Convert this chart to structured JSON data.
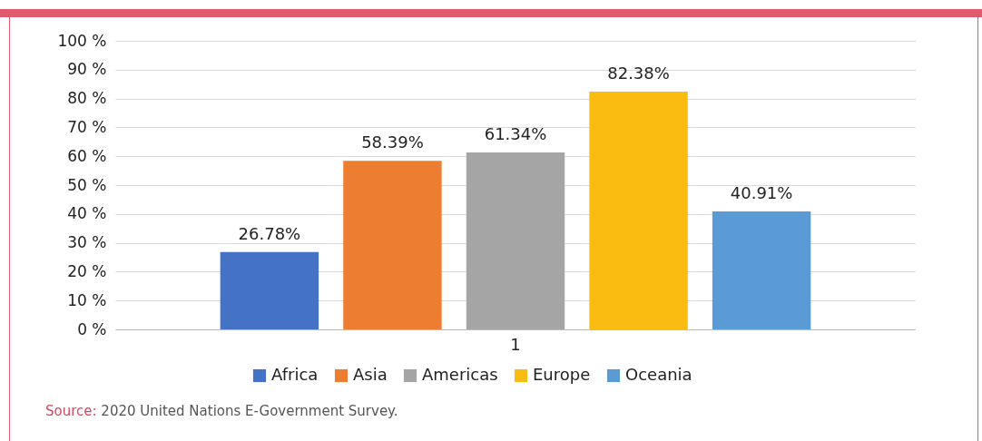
{
  "chart_data": {
    "type": "bar",
    "categories": [
      "1"
    ],
    "series": [
      {
        "name": "Africa",
        "color": "#4472c4",
        "values": [
          26.78
        ],
        "value_labels": [
          "26.78%"
        ]
      },
      {
        "name": "Asia",
        "color": "#ed7d31",
        "values": [
          58.39
        ],
        "value_labels": [
          "58.39%"
        ]
      },
      {
        "name": "Americas",
        "color": "#a5a5a5",
        "values": [
          61.34
        ],
        "value_labels": [
          "61.34%"
        ]
      },
      {
        "name": "Europe",
        "color": "#fbbc11",
        "values": [
          82.38
        ],
        "value_labels": [
          "82.38%"
        ]
      },
      {
        "name": "Oceania",
        "color": "#5b9bd5",
        "values": [
          40.91
        ],
        "value_labels": [
          "40.91%"
        ]
      }
    ],
    "ylim": [
      0,
      100
    ],
    "yticks": [
      {
        "value": 0,
        "label": "0 %"
      },
      {
        "value": 10,
        "label": "10 %"
      },
      {
        "value": 20,
        "label": "20 %"
      },
      {
        "value": 30,
        "label": "30 %"
      },
      {
        "value": 40,
        "label": "40 %"
      },
      {
        "value": 50,
        "label": "50 %"
      },
      {
        "value": 60,
        "label": "60 %"
      },
      {
        "value": 70,
        "label": "70 %"
      },
      {
        "value": 80,
        "label": "80 %"
      },
      {
        "value": 90,
        "label": "90 %"
      },
      {
        "value": 100,
        "label": "100 %"
      }
    ],
    "grid": "y",
    "legend": "bottom",
    "annotations": [
      "Source: 2020 United Nations E-Government Survey."
    ]
  }
}
